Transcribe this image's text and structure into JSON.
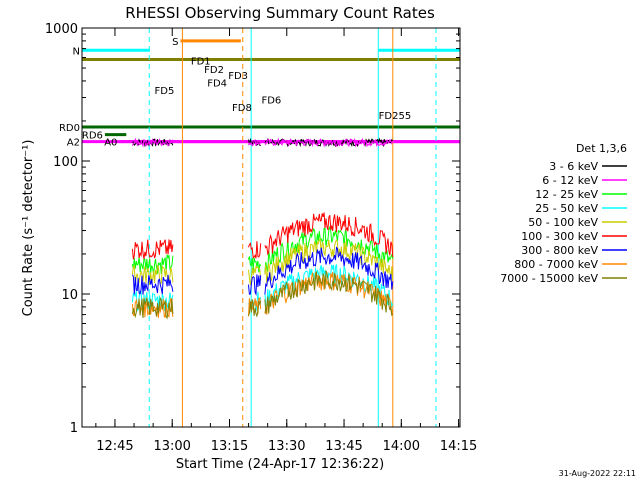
{
  "chart_data": {
    "type": "line",
    "title": "RHESSI Observing Summary Count Rates",
    "xlabel": "Start Time (24-Apr-17 12:36:22)",
    "ylabel": "Count Rate (s⁻¹ detector⁻¹)",
    "yscale": "log",
    "ylim": [
      1,
      1000
    ],
    "xlim_minutes": [
      0,
      99
    ],
    "x_unit": "minutes since 12:36:22",
    "x_ticks": [
      {
        "label": "12:45",
        "min": 8.63
      },
      {
        "label": "13:00",
        "min": 23.63
      },
      {
        "label": "13:15",
        "min": 38.63
      },
      {
        "label": "13:30",
        "min": 53.63
      },
      {
        "label": "13:45",
        "min": 68.63
      },
      {
        "label": "14:00",
        "min": 83.63
      },
      {
        "label": "14:15",
        "min": 98.63
      }
    ],
    "y_ticks": [
      {
        "label": "1",
        "value": 1
      },
      {
        "label": "10",
        "value": 10
      },
      {
        "label": "100",
        "value": 100
      },
      {
        "label": "1000",
        "value": 1000
      }
    ],
    "legend_header": "Det 1,3,6",
    "legend_position": "right",
    "series": [
      {
        "name": "3 - 6 keV",
        "color": "#000000",
        "level": 138
      },
      {
        "name": "6 - 12 keV",
        "color": "#ff00ff",
        "level": 138
      },
      {
        "name": "12 - 25 keV",
        "color": "#00ff00",
        "level": 17
      },
      {
        "name": "25 - 50 keV",
        "color": "#00ffff",
        "level": 9
      },
      {
        "name": "50 - 100 keV",
        "color": "#cccc00",
        "level": 14
      },
      {
        "name": "100 - 300 keV",
        "color": "#ff0000",
        "level": 22
      },
      {
        "name": "300 - 800 keV",
        "color": "#0000ff",
        "level": 12
      },
      {
        "name": "800 - 7000 keV",
        "color": "#ff8800",
        "level": 8
      },
      {
        "name": "7000 - 15000 keV",
        "color": "#808000",
        "level": 8
      }
    ],
    "segments": [
      {
        "start": 13.2,
        "end": 23.8
      },
      {
        "start": 43.6,
        "end": 46.8
      },
      {
        "start": 47.9,
        "end": 81.4
      }
    ],
    "flags": [
      {
        "label": "N",
        "color": "#00ffff",
        "y": 680,
        "start": 0,
        "end": 17.8
      },
      {
        "label": "",
        "color": "#00ffff",
        "y": 680,
        "start": 77.6,
        "end": 99
      },
      {
        "label": "S",
        "color": "#ff8800",
        "y": 800,
        "start": 25.8,
        "end": 41.6
      },
      {
        "label": "",
        "color": "#808000",
        "y": 580,
        "start": 0,
        "end": 99
      },
      {
        "label": "RD6",
        "color": "#006600",
        "y": 158,
        "start": 6,
        "end": 11.6
      },
      {
        "label": "RD0",
        "color": "#006600",
        "y": 180,
        "start": 0,
        "end": 99
      },
      {
        "label": "A2",
        "color": "#ff00ff",
        "y": 140,
        "start": 0,
        "end": 99
      },
      {
        "label": "A0",
        "color": "#ff00ff",
        "y": 140,
        "start": 9.8,
        "end": 99
      }
    ],
    "annotations": [
      {
        "label": "FD1",
        "x": 28.5,
        "y": 530
      },
      {
        "label": "FD2",
        "x": 32,
        "y": 460
      },
      {
        "label": "FD3",
        "x": 38.3,
        "y": 415
      },
      {
        "label": "FD4",
        "x": 32.8,
        "y": 362
      },
      {
        "label": "FD5",
        "x": 19,
        "y": 318
      },
      {
        "label": "FD6",
        "x": 47,
        "y": 270
      },
      {
        "label": "FD8",
        "x": 39.3,
        "y": 238
      },
      {
        "label": "FD255",
        "x": 77.7,
        "y": 207
      }
    ],
    "vertical_markers": [
      {
        "min": 0,
        "color": "#00ffff",
        "style": "solid"
      },
      {
        "min": 17.6,
        "color": "#00ffff",
        "style": "dashed"
      },
      {
        "min": 26.3,
        "color": "#ff8800",
        "style": "solid"
      },
      {
        "min": 42.1,
        "color": "#ff8800",
        "style": "dashed"
      },
      {
        "min": 44.3,
        "color": "#00ffff",
        "style": "solid"
      },
      {
        "min": 77.6,
        "color": "#00ffff",
        "style": "solid"
      },
      {
        "min": 81.4,
        "color": "#ff8800",
        "style": "solid"
      },
      {
        "min": 92.7,
        "color": "#00ffff",
        "style": "dashed"
      }
    ]
  },
  "footer": {
    "timestamp": "31-Aug-2022 22:11"
  }
}
